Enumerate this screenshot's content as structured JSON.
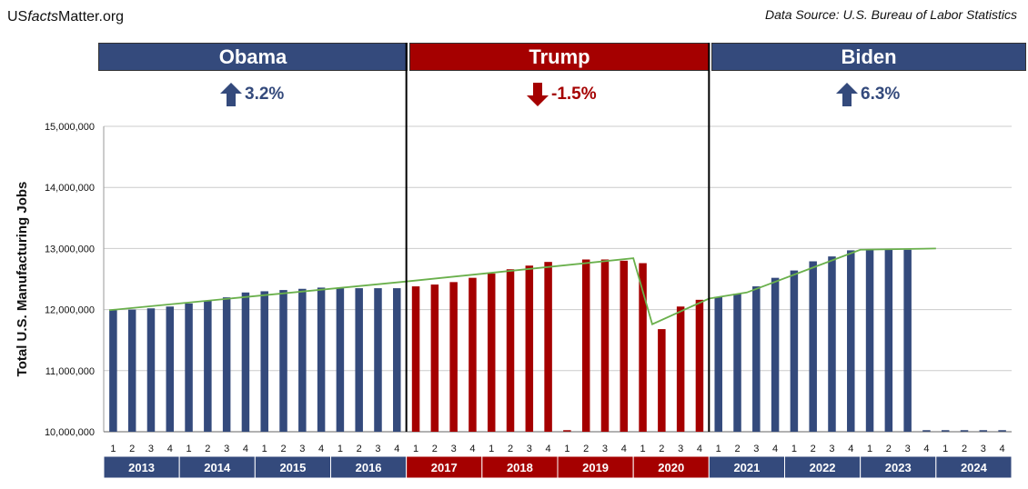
{
  "header": {
    "brand_prefix": "US",
    "brand_italic": "facts",
    "brand_suffix": "Matter.org",
    "source": "Data Source: U.S. Bureau of Labor Statistics"
  },
  "colors": {
    "obama": "#344a7c",
    "trump": "#a50000",
    "biden": "#344a7c",
    "trend": "#6ab04c",
    "grid": "#cccccc"
  },
  "eras": [
    {
      "name": "Obama",
      "change": "3.2%",
      "direction": "up",
      "color": "#344a7c",
      "start": 0,
      "end": 16
    },
    {
      "name": "Trump",
      "change": "-1.5%",
      "direction": "down",
      "color": "#a50000",
      "start": 16,
      "end": 32
    },
    {
      "name": "Biden",
      "change": "6.3%",
      "direction": "up",
      "color": "#344a7c",
      "start": 32,
      "end": 48
    }
  ],
  "chart_data": {
    "type": "bar",
    "title": "",
    "ylabel": "Total U.S. Manufacturing Jobs",
    "xlabel": "",
    "ylim": [
      10000000,
      15000000
    ],
    "yticks": [
      10000000,
      11000000,
      12000000,
      13000000,
      14000000,
      15000000
    ],
    "ytick_labels": [
      "10,000,000",
      "11,000,000",
      "12,000,000",
      "13,000,000",
      "14,000,000",
      "15,000,000"
    ],
    "grid": true,
    "quarter_labels": [
      "1",
      "2",
      "3",
      "4"
    ],
    "years": [
      {
        "label": "2013",
        "color": "#344a7c"
      },
      {
        "label": "2014",
        "color": "#344a7c"
      },
      {
        "label": "2015",
        "color": "#344a7c"
      },
      {
        "label": "2016",
        "color": "#344a7c"
      },
      {
        "label": "2017",
        "color": "#a50000"
      },
      {
        "label": "2018",
        "color": "#a50000"
      },
      {
        "label": "2019",
        "color": "#a50000"
      },
      {
        "label": "2020",
        "color": "#a50000"
      },
      {
        "label": "2021",
        "color": "#344a7c"
      },
      {
        "label": "2022",
        "color": "#344a7c"
      },
      {
        "label": "2023",
        "color": "#344a7c"
      },
      {
        "label": "2024",
        "color": "#344a7c"
      }
    ],
    "bar_values": [
      11990000,
      12000000,
      12020000,
      12050000,
      12100000,
      12150000,
      12200000,
      12280000,
      12300000,
      12320000,
      12340000,
      12360000,
      12350000,
      12350000,
      12350000,
      12350000,
      12380000,
      12410000,
      12450000,
      12520000,
      12590000,
      12660000,
      12720000,
      12780000,
      null,
      12820000,
      12820000,
      12800000,
      12760000,
      11680000,
      12050000,
      12160000,
      12210000,
      12260000,
      12380000,
      12520000,
      12640000,
      12790000,
      12870000,
      12970000,
      12980000,
      12980000,
      12980000,
      null,
      null,
      null,
      null,
      null
    ],
    "trend_points": [
      {
        "index": 0,
        "value": 11990000
      },
      {
        "index": 16,
        "value": 12460000
      },
      {
        "index": 28,
        "value": 12840000
      },
      {
        "index": 29,
        "value": 11760000
      },
      {
        "index": 32,
        "value": 12180000
      },
      {
        "index": 34,
        "value": 12280000
      },
      {
        "index": 40,
        "value": 12980000
      },
      {
        "index": 44,
        "value": 13000000
      }
    ]
  }
}
